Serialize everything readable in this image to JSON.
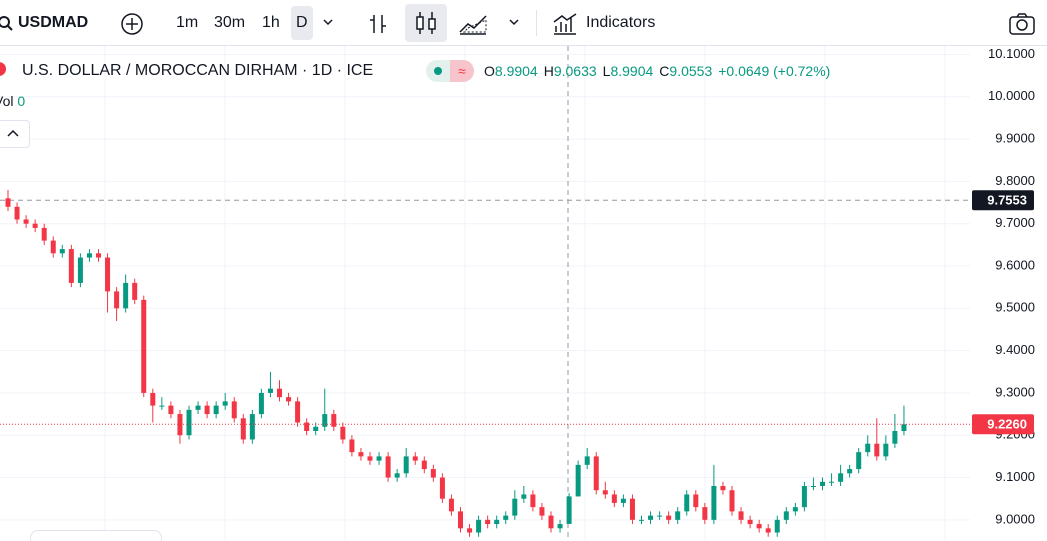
{
  "toolbar": {
    "symbol": "USDMAD",
    "intervals": [
      "1m",
      "30m",
      "1h",
      "D"
    ],
    "indicators": "Indicators"
  },
  "legend": {
    "title": "U.S. DOLLAR / MOROCCAN DIRHAM · 1D · ICE",
    "ohlc": [
      {
        "label": "O",
        "value": "8.9904"
      },
      {
        "label": "H",
        "value": "9.0633"
      },
      {
        "label": "L",
        "value": "8.9904"
      },
      {
        "label": "C",
        "value": "9.0553"
      }
    ],
    "change": "+0.0649 (+0.72%)",
    "volume_label": "Vol",
    "volume_value": "0"
  },
  "chart_data": {
    "type": "candlestick",
    "up_color": "#089981",
    "down_color": "#f23645",
    "grid": true,
    "ylim": [
      8.95,
      10.12
    ],
    "yticks": [
      {
        "value": 9.0,
        "label": "9.0000"
      },
      {
        "value": 9.1,
        "label": "9.1000"
      },
      {
        "value": 9.2,
        "label": "9.2000"
      },
      {
        "value": 9.3,
        "label": "9.3000"
      },
      {
        "value": 9.4,
        "label": "9.4000"
      },
      {
        "value": 9.5,
        "label": "9.5000"
      },
      {
        "value": 9.6,
        "label": "9.6000"
      },
      {
        "value": 9.7,
        "label": "9.7000"
      },
      {
        "value": 9.8,
        "label": "9.8000"
      },
      {
        "value": 9.9,
        "label": "9.9000"
      },
      {
        "value": 10.0,
        "label": "10.0000"
      },
      {
        "value": 10.1,
        "label": "10.1000"
      }
    ],
    "crosshair_price": 9.7553,
    "last_price": {
      "value": 9.226,
      "label": "9.2260"
    },
    "open": [
      9.76,
      9.74,
      9.71,
      9.7,
      9.69,
      9.66,
      9.63,
      9.64,
      9.56,
      9.62,
      9.63,
      9.62,
      9.54,
      9.5,
      9.56,
      9.52,
      9.3,
      9.27,
      9.27,
      9.25,
      9.2,
      9.26,
      9.27,
      9.25,
      9.27,
      9.28,
      9.24,
      9.19,
      9.25,
      9.3,
      9.31,
      9.29,
      9.28,
      9.23,
      9.21,
      9.22,
      9.25,
      9.22,
      9.19,
      9.16,
      9.15,
      9.14,
      9.15,
      9.1,
      9.11,
      9.15,
      9.14,
      9.12,
      9.1,
      9.05,
      9.02,
      8.98,
      8.97,
      9.0,
      8.99,
      9.0,
      9.01,
      9.05,
      9.06,
      9.03,
      9.01,
      8.98,
      8.9904,
      9.0553,
      9.13,
      9.15,
      9.07,
      9.06,
      9.04,
      9.05,
      9.0,
      9.0,
      9.01,
      9.01,
      9.0,
      9.02,
      9.06,
      9.03,
      9.0,
      9.08,
      9.07,
      9.02,
      9.0,
      8.99,
      8.98,
      8.97,
      9.0,
      9.02,
      9.03,
      9.08,
      9.08,
      9.09,
      9.09,
      9.11,
      9.12,
      9.16,
      9.18,
      9.15,
      9.18,
      9.21
    ],
    "high": [
      9.78,
      9.75,
      9.72,
      9.71,
      9.7,
      9.67,
      9.65,
      9.65,
      9.63,
      9.64,
      9.64,
      9.63,
      9.55,
      9.58,
      9.57,
      9.53,
      9.31,
      9.29,
      9.28,
      9.26,
      9.27,
      9.28,
      9.28,
      9.28,
      9.3,
      9.29,
      9.25,
      9.26,
      9.31,
      9.35,
      9.33,
      9.3,
      9.29,
      9.24,
      9.23,
      9.31,
      9.26,
      9.23,
      9.2,
      9.17,
      9.16,
      9.16,
      9.16,
      9.12,
      9.17,
      9.16,
      9.15,
      9.13,
      9.11,
      9.06,
      9.03,
      8.99,
      9.01,
      9.01,
      9.01,
      9.02,
      9.07,
      9.08,
      9.07,
      9.04,
      9.02,
      9.0,
      9.0633,
      9.14,
      9.17,
      9.16,
      9.09,
      9.07,
      9.06,
      9.06,
      9.01,
      9.02,
      9.02,
      9.02,
      9.03,
      9.07,
      9.07,
      9.04,
      9.13,
      9.09,
      9.08,
      9.03,
      9.01,
      9.0,
      8.99,
      9.01,
      9.03,
      9.04,
      9.09,
      9.1,
      9.1,
      9.11,
      9.13,
      9.13,
      9.17,
      9.2,
      9.24,
      9.2,
      9.25,
      9.27
    ],
    "low": [
      9.73,
      9.7,
      9.69,
      9.68,
      9.65,
      9.62,
      9.62,
      9.55,
      9.55,
      9.61,
      9.61,
      9.49,
      9.47,
      9.49,
      9.51,
      9.29,
      9.23,
      9.26,
      9.24,
      9.18,
      9.19,
      9.25,
      9.24,
      9.24,
      9.26,
      9.23,
      9.18,
      9.18,
      9.24,
      9.29,
      9.28,
      9.27,
      9.22,
      9.2,
      9.2,
      9.21,
      9.21,
      9.18,
      9.15,
      9.14,
      9.13,
      9.13,
      9.09,
      9.09,
      9.1,
      9.13,
      9.11,
      9.09,
      9.04,
      9.01,
      8.97,
      8.96,
      8.96,
      8.98,
      8.98,
      8.99,
      9.0,
      9.04,
      9.02,
      9.0,
      8.97,
      8.97,
      8.9904,
      9.06,
      9.12,
      9.06,
      9.05,
      9.03,
      9.03,
      8.99,
      8.99,
      8.99,
      9.0,
      8.99,
      8.99,
      9.01,
      9.02,
      8.99,
      8.99,
      9.06,
      9.01,
      8.99,
      8.98,
      8.97,
      8.96,
      8.96,
      8.99,
      9.01,
      9.02,
      9.07,
      9.07,
      9.08,
      9.08,
      9.1,
      9.11,
      9.15,
      9.14,
      9.14,
      9.17,
      9.2
    ],
    "close": [
      9.74,
      9.71,
      9.7,
      9.69,
      9.66,
      9.63,
      9.64,
      9.56,
      9.62,
      9.63,
      9.62,
      9.54,
      9.5,
      9.56,
      9.52,
      9.3,
      9.27,
      9.27,
      9.25,
      9.2,
      9.26,
      9.27,
      9.25,
      9.27,
      9.28,
      9.24,
      9.19,
      9.25,
      9.3,
      9.31,
      9.29,
      9.28,
      9.23,
      9.21,
      9.22,
      9.25,
      9.22,
      9.19,
      9.16,
      9.15,
      9.14,
      9.15,
      9.1,
      9.11,
      9.15,
      9.14,
      9.12,
      9.1,
      9.05,
      9.02,
      8.98,
      8.97,
      9.0,
      8.99,
      9.0,
      9.01,
      9.05,
      9.06,
      9.03,
      9.01,
      8.98,
      8.99,
      9.0553,
      9.13,
      9.15,
      9.07,
      9.06,
      9.04,
      9.05,
      9.0,
      9.0,
      9.01,
      9.01,
      9.0,
      9.02,
      9.06,
      9.03,
      9.0,
      9.08,
      9.07,
      9.02,
      9.0,
      8.99,
      8.98,
      8.97,
      9.0,
      9.02,
      9.03,
      9.08,
      9.08,
      9.09,
      9.09,
      9.11,
      9.12,
      9.16,
      9.18,
      9.15,
      9.18,
      9.21,
      9.226
    ]
  }
}
